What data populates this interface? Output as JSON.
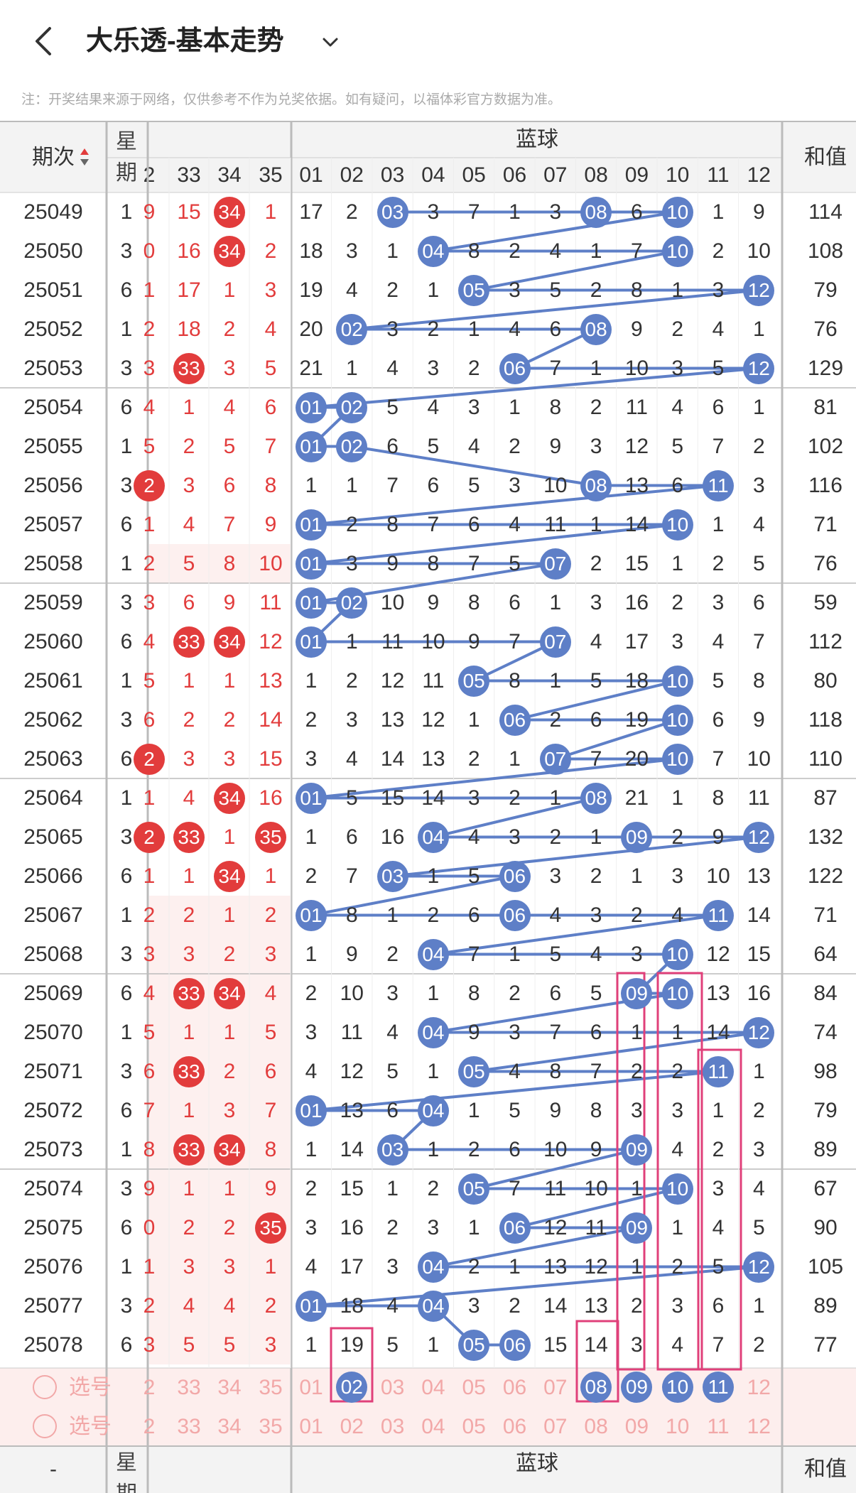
{
  "header": {
    "title": "大乐透-基本走势",
    "back_icon": "back-arrow-icon",
    "dropdown_icon": "chevron-down-icon"
  },
  "notice": "注：开奖结果来源于网络，仅供参考不作为兑奖依据。如有疑问，以福体彩官方数据为准。",
  "table": {
    "col_period": "期次",
    "col_week": "星期",
    "col_blue": "蓝球",
    "col_sum": "和值",
    "footer_dash": "-",
    "red_cols": [
      "2",
      "33",
      "34",
      "35"
    ],
    "blue_cols": [
      "01",
      "02",
      "03",
      "04",
      "05",
      "06",
      "07",
      "08",
      "09",
      "10",
      "11",
      "12"
    ],
    "rows": [
      {
        "p": "25049",
        "w": "1",
        "r": [
          "9",
          "15",
          "34",
          "1"
        ],
        "b": [
          "17",
          "2",
          "03",
          "3",
          "7",
          "1",
          "3",
          "08",
          "6",
          "10",
          "1",
          "9"
        ],
        "s": "114"
      },
      {
        "p": "25050",
        "w": "3",
        "r": [
          "0",
          "16",
          "34",
          "2"
        ],
        "b": [
          "18",
          "3",
          "1",
          "04",
          "8",
          "2",
          "4",
          "1",
          "7",
          "10",
          "2",
          "10"
        ],
        "s": "108"
      },
      {
        "p": "25051",
        "w": "6",
        "r": [
          "1",
          "17",
          "1",
          "3"
        ],
        "b": [
          "19",
          "4",
          "2",
          "1",
          "05",
          "3",
          "5",
          "2",
          "8",
          "1",
          "3",
          "12"
        ],
        "s": "79"
      },
      {
        "p": "25052",
        "w": "1",
        "r": [
          "2",
          "18",
          "2",
          "4"
        ],
        "b": [
          "20",
          "02",
          "3",
          "2",
          "1",
          "4",
          "6",
          "08",
          "9",
          "2",
          "4",
          "1"
        ],
        "s": "76"
      },
      {
        "p": "25053",
        "w": "3",
        "r": [
          "3",
          "33",
          "3",
          "5"
        ],
        "b": [
          "21",
          "1",
          "4",
          "3",
          "2",
          "06",
          "7",
          "1",
          "10",
          "3",
          "5",
          "12"
        ],
        "s": "129"
      },
      {
        "p": "25054",
        "w": "6",
        "r": [
          "4",
          "1",
          "4",
          "6"
        ],
        "b": [
          "01",
          "02",
          "5",
          "4",
          "3",
          "1",
          "8",
          "2",
          "11",
          "4",
          "6",
          "1"
        ],
        "s": "81"
      },
      {
        "p": "25055",
        "w": "1",
        "r": [
          "5",
          "2",
          "5",
          "7"
        ],
        "b": [
          "01",
          "02",
          "6",
          "5",
          "4",
          "2",
          "9",
          "3",
          "12",
          "5",
          "7",
          "2"
        ],
        "s": "102"
      },
      {
        "p": "25056",
        "w": "3",
        "r": [
          "2",
          "3",
          "6",
          "8"
        ],
        "b": [
          "1",
          "1",
          "7",
          "6",
          "5",
          "3",
          "10",
          "08",
          "13",
          "6",
          "11",
          "3"
        ],
        "s": "116"
      },
      {
        "p": "25057",
        "w": "6",
        "r": [
          "1",
          "4",
          "7",
          "9"
        ],
        "b": [
          "01",
          "2",
          "8",
          "7",
          "6",
          "4",
          "11",
          "1",
          "14",
          "10",
          "1",
          "4"
        ],
        "s": "71"
      },
      {
        "p": "25058",
        "w": "1",
        "r": [
          "2",
          "5",
          "8",
          "10"
        ],
        "b": [
          "01",
          "3",
          "9",
          "8",
          "7",
          "5",
          "07",
          "2",
          "15",
          "1",
          "2",
          "5"
        ],
        "s": "76"
      },
      {
        "p": "25059",
        "w": "3",
        "r": [
          "3",
          "6",
          "9",
          "11"
        ],
        "b": [
          "01",
          "02",
          "10",
          "9",
          "8",
          "6",
          "1",
          "3",
          "16",
          "2",
          "3",
          "6"
        ],
        "s": "59"
      },
      {
        "p": "25060",
        "w": "6",
        "r": [
          "4",
          "33",
          "34",
          "12"
        ],
        "b": [
          "01",
          "1",
          "11",
          "10",
          "9",
          "7",
          "07",
          "4",
          "17",
          "3",
          "4",
          "7"
        ],
        "s": "112"
      },
      {
        "p": "25061",
        "w": "1",
        "r": [
          "5",
          "1",
          "1",
          "13"
        ],
        "b": [
          "1",
          "2",
          "12",
          "11",
          "05",
          "8",
          "1",
          "5",
          "18",
          "10",
          "5",
          "8"
        ],
        "s": "80"
      },
      {
        "p": "25062",
        "w": "3",
        "r": [
          "6",
          "2",
          "2",
          "14"
        ],
        "b": [
          "2",
          "3",
          "13",
          "12",
          "1",
          "06",
          "2",
          "6",
          "19",
          "10",
          "6",
          "9"
        ],
        "s": "118"
      },
      {
        "p": "25063",
        "w": "6",
        "r": [
          "2",
          "3",
          "3",
          "15"
        ],
        "b": [
          "3",
          "4",
          "14",
          "13",
          "2",
          "1",
          "07",
          "7",
          "20",
          "10",
          "7",
          "10"
        ],
        "s": "110"
      },
      {
        "p": "25064",
        "w": "1",
        "r": [
          "1",
          "4",
          "34",
          "16"
        ],
        "b": [
          "01",
          "5",
          "15",
          "14",
          "3",
          "2",
          "1",
          "08",
          "21",
          "1",
          "8",
          "11"
        ],
        "s": "87"
      },
      {
        "p": "25065",
        "w": "3",
        "r": [
          "2",
          "33",
          "1",
          "35"
        ],
        "b": [
          "1",
          "6",
          "16",
          "04",
          "4",
          "3",
          "2",
          "1",
          "09",
          "2",
          "9",
          "12"
        ],
        "s": "132"
      },
      {
        "p": "25066",
        "w": "6",
        "r": [
          "1",
          "1",
          "34",
          "1"
        ],
        "b": [
          "2",
          "7",
          "03",
          "1",
          "5",
          "06",
          "3",
          "2",
          "1",
          "3",
          "10",
          "13"
        ],
        "s": "122"
      },
      {
        "p": "25067",
        "w": "1",
        "r": [
          "2",
          "2",
          "1",
          "2"
        ],
        "b": [
          "01",
          "8",
          "1",
          "2",
          "6",
          "06",
          "4",
          "3",
          "2",
          "4",
          "11",
          "14"
        ],
        "s": "71"
      },
      {
        "p": "25068",
        "w": "3",
        "r": [
          "3",
          "3",
          "2",
          "3"
        ],
        "b": [
          "1",
          "9",
          "2",
          "04",
          "7",
          "1",
          "5",
          "4",
          "3",
          "10",
          "12",
          "15"
        ],
        "s": "64"
      },
      {
        "p": "25069",
        "w": "6",
        "r": [
          "4",
          "33",
          "34",
          "4"
        ],
        "b": [
          "2",
          "10",
          "3",
          "1",
          "8",
          "2",
          "6",
          "5",
          "09",
          "10",
          "13",
          "16"
        ],
        "s": "84"
      },
      {
        "p": "25070",
        "w": "1",
        "r": [
          "5",
          "1",
          "1",
          "5"
        ],
        "b": [
          "3",
          "11",
          "4",
          "04",
          "9",
          "3",
          "7",
          "6",
          "1",
          "1",
          "14",
          "12"
        ],
        "s": "74"
      },
      {
        "p": "25071",
        "w": "3",
        "r": [
          "6",
          "33",
          "2",
          "6"
        ],
        "b": [
          "4",
          "12",
          "5",
          "1",
          "05",
          "4",
          "8",
          "7",
          "2",
          "2",
          "11",
          "1"
        ],
        "s": "98"
      },
      {
        "p": "25072",
        "w": "6",
        "r": [
          "7",
          "1",
          "3",
          "7"
        ],
        "b": [
          "01",
          "13",
          "6",
          "04",
          "1",
          "5",
          "9",
          "8",
          "3",
          "3",
          "1",
          "2"
        ],
        "s": "79"
      },
      {
        "p": "25073",
        "w": "1",
        "r": [
          "8",
          "33",
          "34",
          "8"
        ],
        "b": [
          "1",
          "14",
          "03",
          "1",
          "2",
          "6",
          "10",
          "9",
          "09",
          "4",
          "2",
          "3"
        ],
        "s": "89"
      },
      {
        "p": "25074",
        "w": "3",
        "r": [
          "9",
          "1",
          "1",
          "9"
        ],
        "b": [
          "2",
          "15",
          "1",
          "2",
          "05",
          "7",
          "11",
          "10",
          "1",
          "10",
          "3",
          "4"
        ],
        "s": "67"
      },
      {
        "p": "25075",
        "w": "6",
        "r": [
          "0",
          "2",
          "2",
          "35"
        ],
        "b": [
          "3",
          "16",
          "2",
          "3",
          "1",
          "06",
          "12",
          "11",
          "09",
          "1",
          "4",
          "5"
        ],
        "s": "90"
      },
      {
        "p": "25076",
        "w": "1",
        "r": [
          "1",
          "3",
          "3",
          "1"
        ],
        "b": [
          "4",
          "17",
          "3",
          "04",
          "2",
          "1",
          "13",
          "12",
          "1",
          "2",
          "5",
          "12"
        ],
        "s": "105"
      },
      {
        "p": "25077",
        "w": "3",
        "r": [
          "2",
          "4",
          "4",
          "2"
        ],
        "b": [
          "01",
          "18",
          "4",
          "04",
          "3",
          "2",
          "14",
          "13",
          "2",
          "3",
          "6",
          "1"
        ],
        "s": "89"
      },
      {
        "p": "25078",
        "w": "6",
        "r": [
          "3",
          "5",
          "5",
          "3"
        ],
        "b": [
          "1",
          "19",
          "5",
          "1",
          "05",
          "06",
          "15",
          "14",
          "3",
          "4",
          "7",
          "2"
        ],
        "s": "77"
      }
    ],
    "select_label": "选号",
    "select_row1_red": [
      "2",
      "33",
      "34",
      "35"
    ],
    "select_row1_blue": [
      "01",
      "02",
      "03",
      "04",
      "05",
      "06",
      "07",
      "08",
      "09",
      "10",
      "11",
      "12"
    ],
    "select_row2_red": [
      "2",
      "33",
      "34",
      "35"
    ],
    "select_row2_blue": [
      "01",
      "02",
      "03",
      "04",
      "05",
      "06",
      "07",
      "08",
      "09",
      "10",
      "11",
      "12"
    ]
  },
  "colors": {
    "blue_ball": "#5e7fc7",
    "red_ball": "#e23c3c",
    "highlight_box": "#e0407a",
    "select_bg": "#fdeeed"
  }
}
